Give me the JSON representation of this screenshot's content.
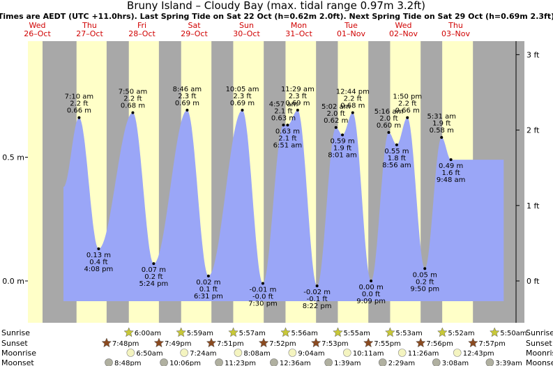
{
  "chart_data": {
    "type": "area",
    "title": "Bruny Island – Cloudy Bay (max. tidal range 0.97m 3.2ft)",
    "subtitle": "Times are AEDT (UTC +11.0hrs). Last Spring Tide on Sat 22 Oct (h=0.62m 2.0ft). Next Spring Tide on Sat 29 Oct (h=0.69m 2.3ft)",
    "days": [
      {
        "dow": "Wed",
        "date": "26–Oct"
      },
      {
        "dow": "Thu",
        "date": "27–Oct"
      },
      {
        "dow": "Fri",
        "date": "28–Oct"
      },
      {
        "dow": "Sat",
        "date": "29–Oct"
      },
      {
        "dow": "Sun",
        "date": "30–Oct"
      },
      {
        "dow": "Mon",
        "date": "31–Oct"
      },
      {
        "dow": "Tue",
        "date": "01–Nov"
      },
      {
        "dow": "Wed",
        "date": "02–Nov"
      },
      {
        "dow": "Thu",
        "date": "03–Nov"
      }
    ],
    "x_range_hours": [
      -9.6,
      214.4
    ],
    "ylim_m": [
      -0.15,
      0.97
    ],
    "y_left_ticks": [
      {
        "value": 0.0,
        "label": "0.0 m"
      },
      {
        "value": 0.5,
        "label": "0.5 m"
      }
    ],
    "y_right_ticks": [
      {
        "value": 0,
        "label": "0 ft"
      },
      {
        "value": 1,
        "label": "1 ft"
      },
      {
        "value": 2,
        "label": "2 ft"
      },
      {
        "value": 3,
        "label": "3 ft"
      }
    ],
    "series_start": {
      "t": 0.0,
      "h": 0.38
    },
    "series_end": {
      "t": 202.0,
      "h": 0.49
    },
    "tides": [
      {
        "t": 7.17,
        "h": 0.66,
        "type": "high",
        "time": "7:10 am",
        "ft": "2.2 ft",
        "m": "0.66 m"
      },
      {
        "t": 16.13,
        "h": 0.13,
        "type": "low",
        "time": "4:08 pm",
        "ft": "0.4 ft",
        "m": "0.13 m"
      },
      {
        "t": 31.83,
        "h": 0.68,
        "type": "high",
        "time": "7:50 am",
        "ft": "2.2 ft",
        "m": "0.68 m"
      },
      {
        "t": 41.4,
        "h": 0.07,
        "type": "low",
        "time": "5:24 pm",
        "ft": "0.2 ft",
        "m": "0.07 m"
      },
      {
        "t": 56.77,
        "h": 0.69,
        "type": "high",
        "time": "8:46 am",
        "ft": "2.3 ft",
        "m": "0.69 m"
      },
      {
        "t": 66.52,
        "h": 0.02,
        "type": "low",
        "time": "6:31 pm",
        "ft": "0.1 ft",
        "m": "0.02 m"
      },
      {
        "t": 82.08,
        "h": 0.69,
        "type": "high",
        "time": "10:05 am",
        "ft": "2.3 ft",
        "m": "0.69 m"
      },
      {
        "t": 91.5,
        "h": -0.01,
        "type": "low",
        "time": "7:30 pm",
        "ft": "-0.0 ft",
        "m": "-0.01 m"
      },
      {
        "t": 100.95,
        "h": 0.63,
        "type": "high",
        "time": "4:57 am",
        "ft": "2.1 ft",
        "m": "0.63 m"
      },
      {
        "t": 102.85,
        "h": 0.63,
        "type": "low",
        "time": "6:51 am",
        "ft": "2.1 ft",
        "m": "0.63 m"
      },
      {
        "t": 107.48,
        "h": 0.69,
        "type": "high",
        "time": "11:29 am",
        "ft": "2.3 ft",
        "m": "0.69 m"
      },
      {
        "t": 116.37,
        "h": -0.02,
        "type": "low",
        "time": "8:22 pm",
        "ft": "-0.1 ft",
        "m": "-0.02 m"
      },
      {
        "t": 125.03,
        "h": 0.62,
        "type": "high",
        "time": "5:02 am",
        "ft": "2.0 ft",
        "m": "0.62 m"
      },
      {
        "t": 128.02,
        "h": 0.59,
        "type": "low",
        "time": "8:01 am",
        "ft": "1.9 ft",
        "m": "0.59 m"
      },
      {
        "t": 132.73,
        "h": 0.68,
        "type": "high",
        "time": "12:44 pm",
        "ft": "2.2 ft",
        "m": "0.68 m"
      },
      {
        "t": 141.15,
        "h": 0.0,
        "type": "low",
        "time": "9:09 pm",
        "ft": "0.0 ft",
        "m": "0.00 m"
      },
      {
        "t": 149.27,
        "h": 0.6,
        "type": "high",
        "time": "5:16 am",
        "ft": "2.0 ft",
        "m": "0.60 m"
      },
      {
        "t": 152.93,
        "h": 0.55,
        "type": "low",
        "time": "8:56 am",
        "ft": "1.8 ft",
        "m": "0.55 m"
      },
      {
        "t": 157.83,
        "h": 0.66,
        "type": "high",
        "time": "1:50 pm",
        "ft": "2.2 ft",
        "m": "0.66 m"
      },
      {
        "t": 165.83,
        "h": 0.05,
        "type": "low",
        "time": "9:50 pm",
        "ft": "0.2 ft",
        "m": "0.05 m"
      },
      {
        "t": 173.52,
        "h": 0.58,
        "type": "high",
        "time": "5:31 am",
        "ft": "1.9 ft",
        "m": "0.58 m"
      },
      {
        "t": 177.8,
        "h": 0.49,
        "type": "low",
        "time": "9:48 am",
        "ft": "1.6 ft",
        "m": "0.49 m"
      }
    ],
    "night_bands": [
      [
        -9.6,
        6.0
      ],
      [
        19.8,
        30.0
      ],
      [
        43.8,
        54.0
      ],
      [
        67.9,
        77.9
      ],
      [
        91.9,
        101.9
      ],
      [
        115.9,
        125.9
      ],
      [
        139.9,
        149.9
      ],
      [
        163.9,
        173.8
      ],
      [
        187.9,
        214.4
      ]
    ],
    "ephemeris_labels": [
      "Sunrise",
      "Sunset",
      "Moonrise",
      "Moonset"
    ],
    "sunrise": [
      {
        "t": 30.0,
        "label": "6:00am"
      },
      {
        "t": 53.98,
        "label": "5:59am"
      },
      {
        "t": 77.95,
        "label": "5:57am"
      },
      {
        "t": 101.93,
        "label": "5:56am"
      },
      {
        "t": 125.92,
        "label": "5:55am"
      },
      {
        "t": 149.88,
        "label": "5:53am"
      },
      {
        "t": 173.87,
        "label": "5:52am"
      },
      {
        "t": 197.83,
        "label": "5:50am"
      }
    ],
    "sunset": [
      {
        "t": 19.8,
        "label": "7:48pm"
      },
      {
        "t": 43.82,
        "label": "7:49pm"
      },
      {
        "t": 67.85,
        "label": "7:51pm"
      },
      {
        "t": 91.87,
        "label": "7:52pm"
      },
      {
        "t": 115.88,
        "label": "7:53pm"
      },
      {
        "t": 139.92,
        "label": "7:55pm"
      },
      {
        "t": 163.93,
        "label": "7:56pm"
      },
      {
        "t": 187.95,
        "label": "7:57pm"
      }
    ],
    "moonrise": [
      {
        "t": 30.83,
        "label": "6:50am"
      },
      {
        "t": 55.4,
        "label": "7:24am"
      },
      {
        "t": 80.13,
        "label": "8:08am"
      },
      {
        "t": 105.07,
        "label": "9:04am"
      },
      {
        "t": 130.18,
        "label": "10:11am"
      },
      {
        "t": 155.43,
        "label": "11:26am"
      },
      {
        "t": 180.72,
        "label": "12:43pm"
      }
    ],
    "moonset": [
      {
        "t": 20.8,
        "label": "8:48pm"
      },
      {
        "t": 46.1,
        "label": "10:06pm"
      },
      {
        "t": 71.38,
        "label": "11:23pm"
      },
      {
        "t": 96.6,
        "label": "12:36am"
      },
      {
        "t": 121.65,
        "label": "1:39am"
      },
      {
        "t": 146.48,
        "label": "2:29am"
      },
      {
        "t": 171.13,
        "label": "3:08am"
      },
      {
        "t": 195.65,
        "label": "3:39am"
      }
    ],
    "colors": {
      "day": "#ffffc8",
      "night": "#a8a8a8",
      "water": "#9aa6f7",
      "date_text": "#d00000",
      "star": "#c8c838",
      "star_set": "#8a4a20",
      "moon": "#f4f4c0",
      "moonset": "#b0b0a0"
    }
  }
}
